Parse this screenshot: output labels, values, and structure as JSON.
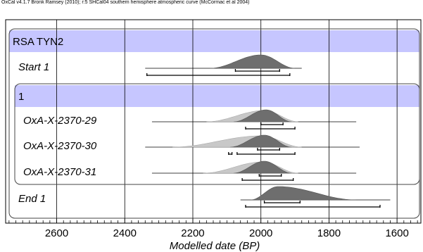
{
  "credit": "OxCal v4.1.7 Bronk Ramsey (2010); r:5 SHCal04 southern hemisphere atmospheric curve (McCormac et al 2004)",
  "chart_data": {
    "type": "multiplot",
    "xlabel": "Modelled date (BP)",
    "xlim": [
      2750,
      1530
    ],
    "x_reversed": true,
    "xticks": [
      2600,
      2400,
      2200,
      2000,
      1800,
      1600
    ],
    "minor_tick_step": 20,
    "grid": true,
    "colors": {
      "group_band": "#c6c6ff",
      "posterior": "#6e6e6e",
      "likelihood": "#c8c8c8",
      "frame": "#000000"
    },
    "groups": [
      {
        "label": "RSA TYN2",
        "level": 0
      },
      {
        "label": "1",
        "level": 1
      }
    ],
    "rows": [
      {
        "label": "Start 1",
        "range_line": [
          2340,
          1880
        ],
        "posterior": {
          "start": 2150,
          "peak": 2000,
          "end": 1900
        },
        "ranges_68": [
          [
            2075,
            1945
          ]
        ],
        "ranges_95": [
          [
            2335,
            1915
          ]
        ]
      },
      {
        "label": "OxA-X-2370-29",
        "range_line": [
          2320,
          1720
        ],
        "likelihood": {
          "start": 2160,
          "peak": 1990,
          "end": 1890
        },
        "posterior": {
          "start": 2080,
          "peak": 1985,
          "end": 1910
        },
        "ranges_68": [
          [
            2000,
            1935
          ]
        ],
        "ranges_95": [
          [
            2045,
            1900
          ]
        ]
      },
      {
        "label": "OxA-X-2370-30",
        "range_line": [
          2340,
          1710
        ],
        "likelihood": {
          "start": 2260,
          "peak": 2000,
          "end": 1880
        },
        "posterior": {
          "start": 2090,
          "peak": 1990,
          "end": 1910
        },
        "ranges_68": [
          [
            2010,
            1945
          ]
        ],
        "ranges_95": [
          [
            2095,
            2085
          ],
          [
            2070,
            1900
          ]
        ]
      },
      {
        "label": "OxA-X-2370-31",
        "range_line": [
          2320,
          1720
        ],
        "likelihood": {
          "start": 2170,
          "peak": 1995,
          "end": 1890
        },
        "posterior": {
          "start": 2080,
          "peak": 1990,
          "end": 1910
        },
        "ranges_68": [
          [
            2005,
            1940
          ]
        ],
        "ranges_95": [
          [
            2055,
            1905
          ]
        ]
      },
      {
        "label": "End 1",
        "range_line": [
          2060,
          1620
        ],
        "posterior": {
          "start": 2030,
          "peak": 1950,
          "end": 1720
        },
        "ranges_68": [
          [
            1990,
            1885
          ]
        ],
        "ranges_95": [
          [
            2045,
            1650
          ]
        ]
      }
    ]
  }
}
